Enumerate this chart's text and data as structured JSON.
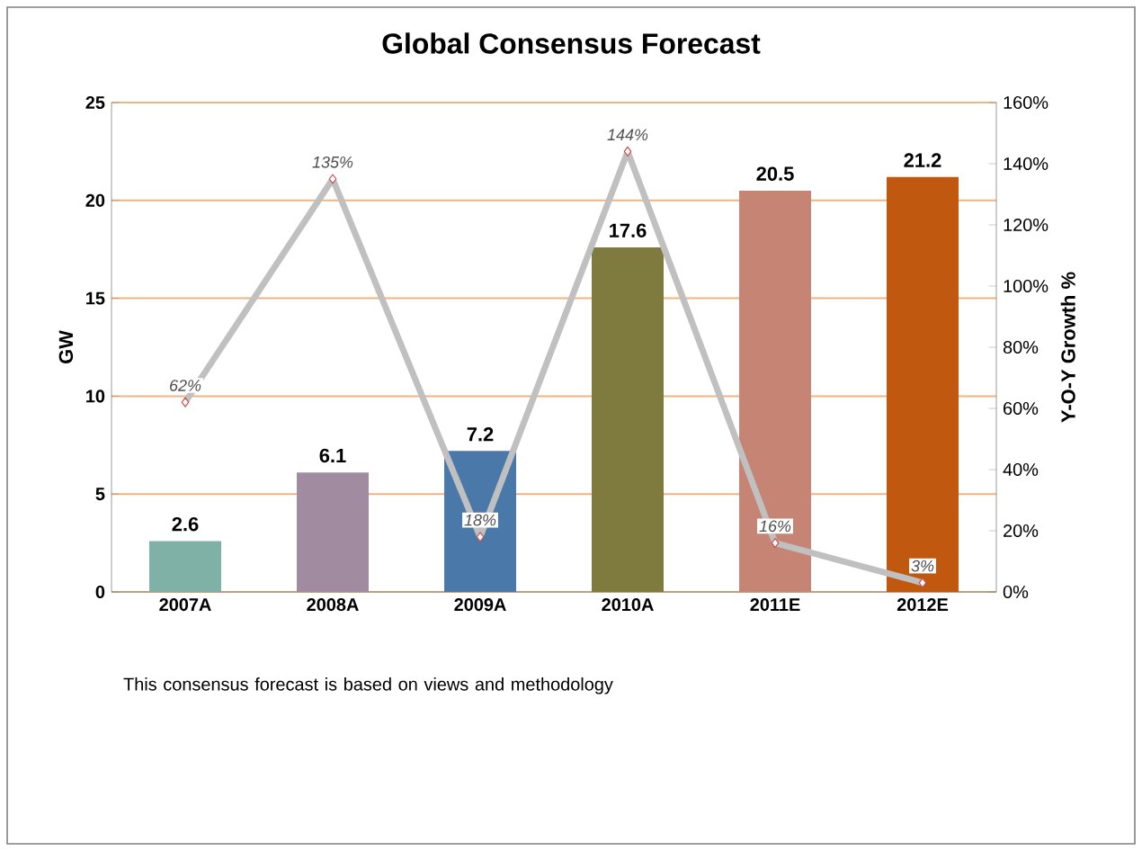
{
  "chart_data": {
    "type": "bar",
    "title": "Global Consensus Forecast",
    "ylabel": "GW",
    "y2label": "Y-O-Y Growth %",
    "categories": [
      "2007A",
      "2008A",
      "2009A",
      "2010A",
      "2011E",
      "2012E"
    ],
    "series": [
      {
        "colors": [
          "#7fb1a6",
          "#a08ba0",
          "#4a78a8",
          "#7f7a3e",
          "#c58474",
          "#c0580f"
        ],
        "values": [
          2.6,
          6.1,
          7.2,
          17.6,
          20.5,
          21.2
        ],
        "value_labels": [
          "2.6",
          "6.1",
          "7.2",
          "17.6",
          "20.5",
          "21.2"
        ]
      },
      {
        "type": "line",
        "axis": "y2",
        "color": "#c0c0c0",
        "marker": "diamond",
        "values": [
          62,
          135,
          18,
          144,
          16,
          3
        ],
        "value_labels": [
          "62%",
          "135%",
          "18%",
          "144%",
          "16%",
          "3%"
        ]
      }
    ],
    "ylim": [
      0,
      25
    ],
    "yticks": [
      0,
      5,
      10,
      15,
      20,
      25
    ],
    "y2lim": [
      0,
      160
    ],
    "y2ticks": [
      {
        "value": 0,
        "label": "0%"
      },
      {
        "value": 20,
        "label": "20%"
      },
      {
        "value": 40,
        "label": "40%"
      },
      {
        "value": 60,
        "label": "60%"
      },
      {
        "value": 80,
        "label": "80%"
      },
      {
        "value": 100,
        "label": "100%"
      },
      {
        "value": 120,
        "label": "120%"
      },
      {
        "value": 140,
        "label": "140%"
      },
      {
        "value": 160,
        "label": "160%"
      }
    ],
    "grid": "y",
    "legend": false,
    "annotations": [
      "This consensus forecast is based on views and methodology"
    ]
  }
}
